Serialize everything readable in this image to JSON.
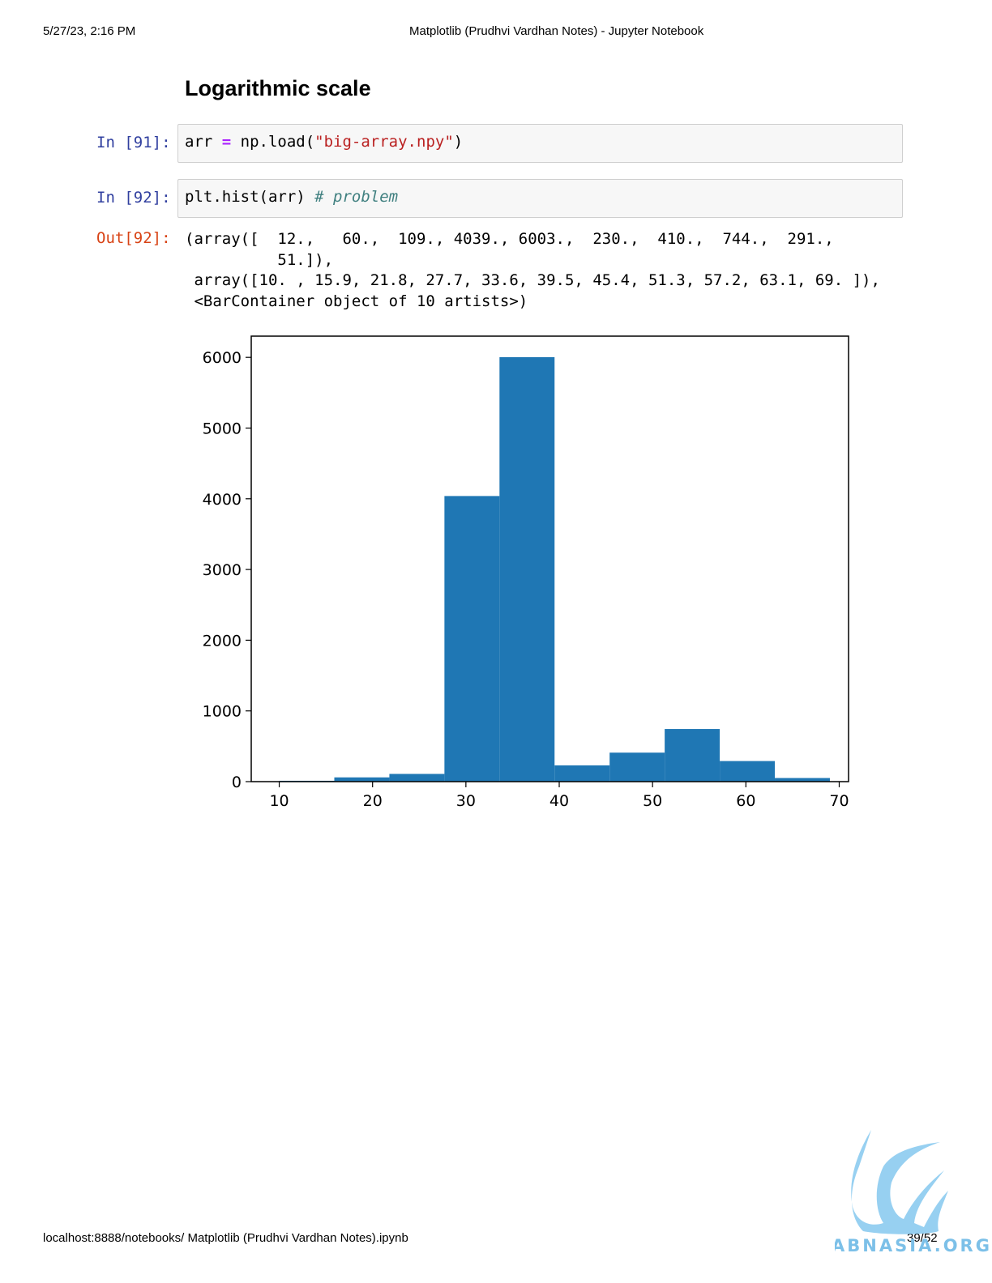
{
  "header": {
    "datetime": "5/27/23, 2:16 PM",
    "title": "Matplotlib (Prudhvi Vardhan Notes) - Jupyter Notebook"
  },
  "section_heading": "Logarithmic scale",
  "cells": [
    {
      "prompt": "In [91]:",
      "code_parts": [
        "arr ",
        "=",
        " np.load(",
        "\"big-array.npy\"",
        ")"
      ]
    },
    {
      "prompt": "In [92]:",
      "code_parts": [
        "plt.hist(arr) ",
        "# problem"
      ]
    }
  ],
  "output": {
    "prompt": "Out[92]:",
    "lines": [
      "(array([  12.,   60.,  109., 4039., 6003.,  230.,  410.,  744.,  291.,",
      "          51.]),",
      " array([10. , 15.9, 21.8, 27.7, 33.6, 39.5, 45.4, 51.3, 57.2, 63.1, 69. ]),",
      " <BarContainer object of 10 artists>)"
    ]
  },
  "chart_data": {
    "type": "bar",
    "title": "",
    "xlabel": "",
    "ylabel": "",
    "bin_edges": [
      10.0,
      15.9,
      21.8,
      27.7,
      33.6,
      39.5,
      45.4,
      51.3,
      57.2,
      63.1,
      69.0
    ],
    "values": [
      12,
      60,
      109,
      4039,
      6003,
      230,
      410,
      744,
      291,
      51
    ],
    "xlim": [
      7,
      71
    ],
    "ylim": [
      0,
      6300
    ],
    "xticks": [
      10,
      20,
      30,
      40,
      50,
      60,
      70
    ],
    "yticks": [
      0,
      1000,
      2000,
      3000,
      4000,
      5000,
      6000
    ],
    "bar_color": "#1f77b4",
    "grid": false
  },
  "footer": {
    "url": "localhost:8888/notebooks/ Matplotlib (Prudhvi Vardhan Notes).ipynb",
    "page": "39/52"
  },
  "watermark": {
    "text": "ABNASIA.ORG",
    "color": "#7cc0e8"
  }
}
